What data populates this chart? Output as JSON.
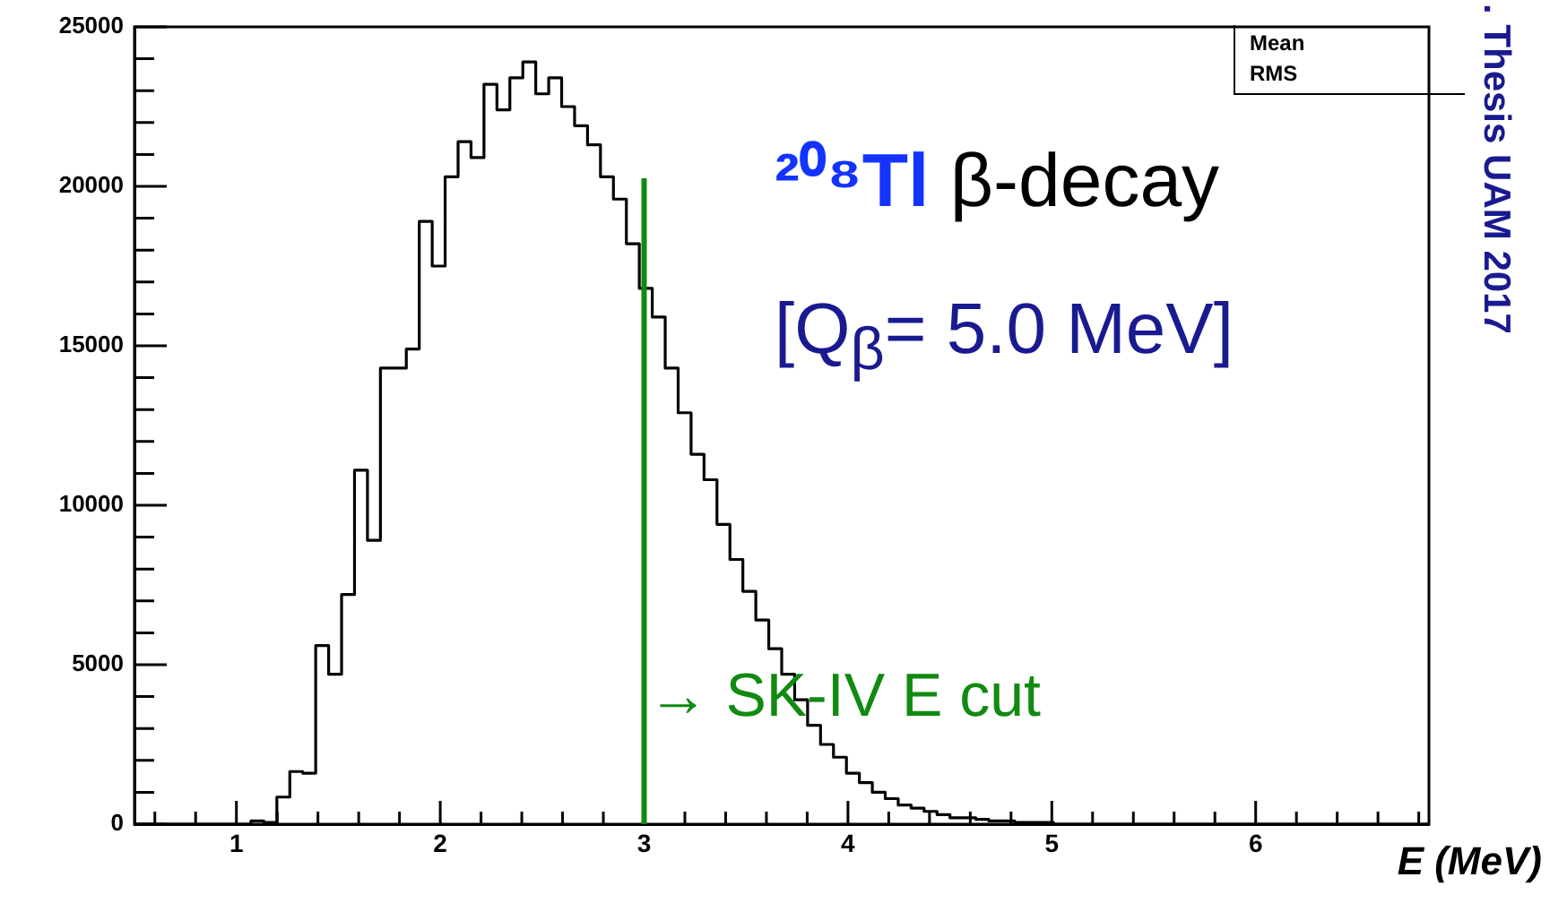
{
  "chart_data": {
    "type": "histogram",
    "xlabel": "E (MeV)",
    "color": "#000000",
    "bins": [
      0.5,
      0.5635,
      0.627,
      0.6905,
      0.754,
      0.8175,
      0.881,
      0.9445,
      1.008,
      1.0715,
      1.135,
      1.1985,
      1.262,
      1.3255,
      1.389,
      1.4525,
      1.516,
      1.5795,
      1.643,
      1.7065,
      1.77,
      1.8335,
      1.897,
      1.9605,
      2.024,
      2.0875,
      2.151,
      2.2145,
      2.278,
      2.3415,
      2.405,
      2.4685,
      2.532,
      2.5955,
      2.659,
      2.7225,
      2.786,
      2.8495,
      2.913,
      2.9765,
      3.04,
      3.1035,
      3.167,
      3.2305,
      3.294,
      3.3575,
      3.421,
      3.4845,
      3.548,
      3.6115,
      3.675,
      3.7385,
      3.802,
      3.8655,
      3.929,
      3.9925,
      4.056,
      4.1195,
      4.183,
      4.2465,
      4.31,
      4.3735,
      4.437,
      4.5005,
      4.564,
      4.6275,
      4.691,
      4.7545,
      4.818,
      4.8815,
      4.945,
      5.0085,
      5.072,
      5.1355,
      5.199,
      5.2625,
      5.326,
      5.3895,
      5.453,
      5.5165,
      5.58,
      5.6435,
      5.707,
      5.7705,
      5.834,
      5.8975,
      5.961,
      6.0245,
      6.088,
      6.1515,
      6.215,
      6.2785,
      6.342,
      6.4055,
      6.469,
      6.5325,
      6.596,
      6.6595,
      6.723,
      6.7865,
      6.85
    ],
    "values": [
      0,
      0,
      0,
      0,
      0,
      0,
      0,
      0,
      0,
      100,
      50,
      850,
      1650,
      1600,
      5600,
      4700,
      7200,
      11100,
      8900,
      14300,
      14300,
      14900,
      18900,
      17500,
      20300,
      21400,
      20900,
      23200,
      22400,
      23400,
      23900,
      22900,
      23400,
      22500,
      21900,
      21300,
      20300,
      19600,
      18200,
      16800,
      15900,
      14300,
      12900,
      11600,
      10800,
      9400,
      8300,
      7300,
      6400,
      5500,
      4700,
      3900,
      3100,
      2500,
      2100,
      1600,
      1300,
      1000,
      800,
      600,
      500,
      400,
      300,
      200,
      200,
      150,
      100,
      100,
      50,
      50,
      50,
      0,
      0,
      0,
      0,
      0,
      0,
      0,
      0,
      0,
      0,
      0,
      0,
      0,
      0,
      0,
      0,
      0,
      0,
      0,
      0,
      0,
      0,
      0,
      0,
      0,
      0,
      0,
      0,
      0
    ],
    "xlim": [
      0.5,
      6.85
    ],
    "xticks": [
      {
        "value": 0.6,
        "label": null
      },
      {
        "value": 0.8,
        "label": null
      },
      1,
      {
        "value": 1.2,
        "label": null
      },
      {
        "value": 1.4,
        "label": null
      },
      {
        "value": 1.6,
        "label": null
      },
      {
        "value": 1.8,
        "label": null
      },
      2,
      {
        "value": 2.2,
        "label": null
      },
      {
        "value": 2.4,
        "label": null
      },
      {
        "value": 2.6,
        "label": null
      },
      {
        "value": 2.8,
        "label": null
      },
      3,
      {
        "value": 3.2,
        "label": null
      },
      {
        "value": 3.4,
        "label": null
      },
      {
        "value": 3.6,
        "label": null
      },
      {
        "value": 3.8,
        "label": null
      },
      4,
      {
        "value": 4.2,
        "label": null
      },
      {
        "value": 4.4,
        "label": null
      },
      {
        "value": 4.6,
        "label": null
      },
      {
        "value": 4.8,
        "label": null
      },
      5,
      {
        "value": 5.2,
        "label": null
      },
      {
        "value": 5.4,
        "label": null
      },
      {
        "value": 5.6,
        "label": null
      },
      {
        "value": 5.8,
        "label": null
      },
      6,
      {
        "value": 6.2,
        "label": null
      },
      {
        "value": 6.4,
        "label": null
      },
      {
        "value": 6.6,
        "label": null
      },
      {
        "value": 6.8,
        "label": null
      }
    ],
    "ylim": [
      0,
      25000
    ],
    "yticks": [
      0,
      {
        "value": 1000,
        "label": null
      },
      {
        "value": 2000,
        "label": null
      },
      {
        "value": 3000,
        "label": null
      },
      {
        "value": 4000,
        "label": null
      },
      5000,
      {
        "value": 6000,
        "label": null
      },
      {
        "value": 7000,
        "label": null
      },
      {
        "value": 8000,
        "label": null
      },
      {
        "value": 9000,
        "label": null
      },
      10000,
      {
        "value": 11000,
        "label": null
      },
      {
        "value": 12000,
        "label": null
      },
      {
        "value": 13000,
        "label": null
      },
      {
        "value": 14000,
        "label": null
      },
      15000,
      {
        "value": 16000,
        "label": null
      },
      {
        "value": 17000,
        "label": null
      },
      {
        "value": 18000,
        "label": null
      },
      {
        "value": 19000,
        "label": null
      },
      20000,
      {
        "value": 21000,
        "label": null
      },
      {
        "value": 22000,
        "label": null
      },
      {
        "value": 23000,
        "label": null
      },
      {
        "value": 24000,
        "label": null
      },
      25000
    ],
    "ref_lines": [
      {
        "axis": "x",
        "value": 3,
        "label": "→ SK-IV E cut",
        "color": "#118a11"
      }
    ],
    "annotations": [
      "²⁰⁸Tl β-decay",
      "[Q$_{β}$= 5.0 MeV]",
      "Mean",
      "RMS",
      ". Thesis UAM 2017"
    ]
  }
}
